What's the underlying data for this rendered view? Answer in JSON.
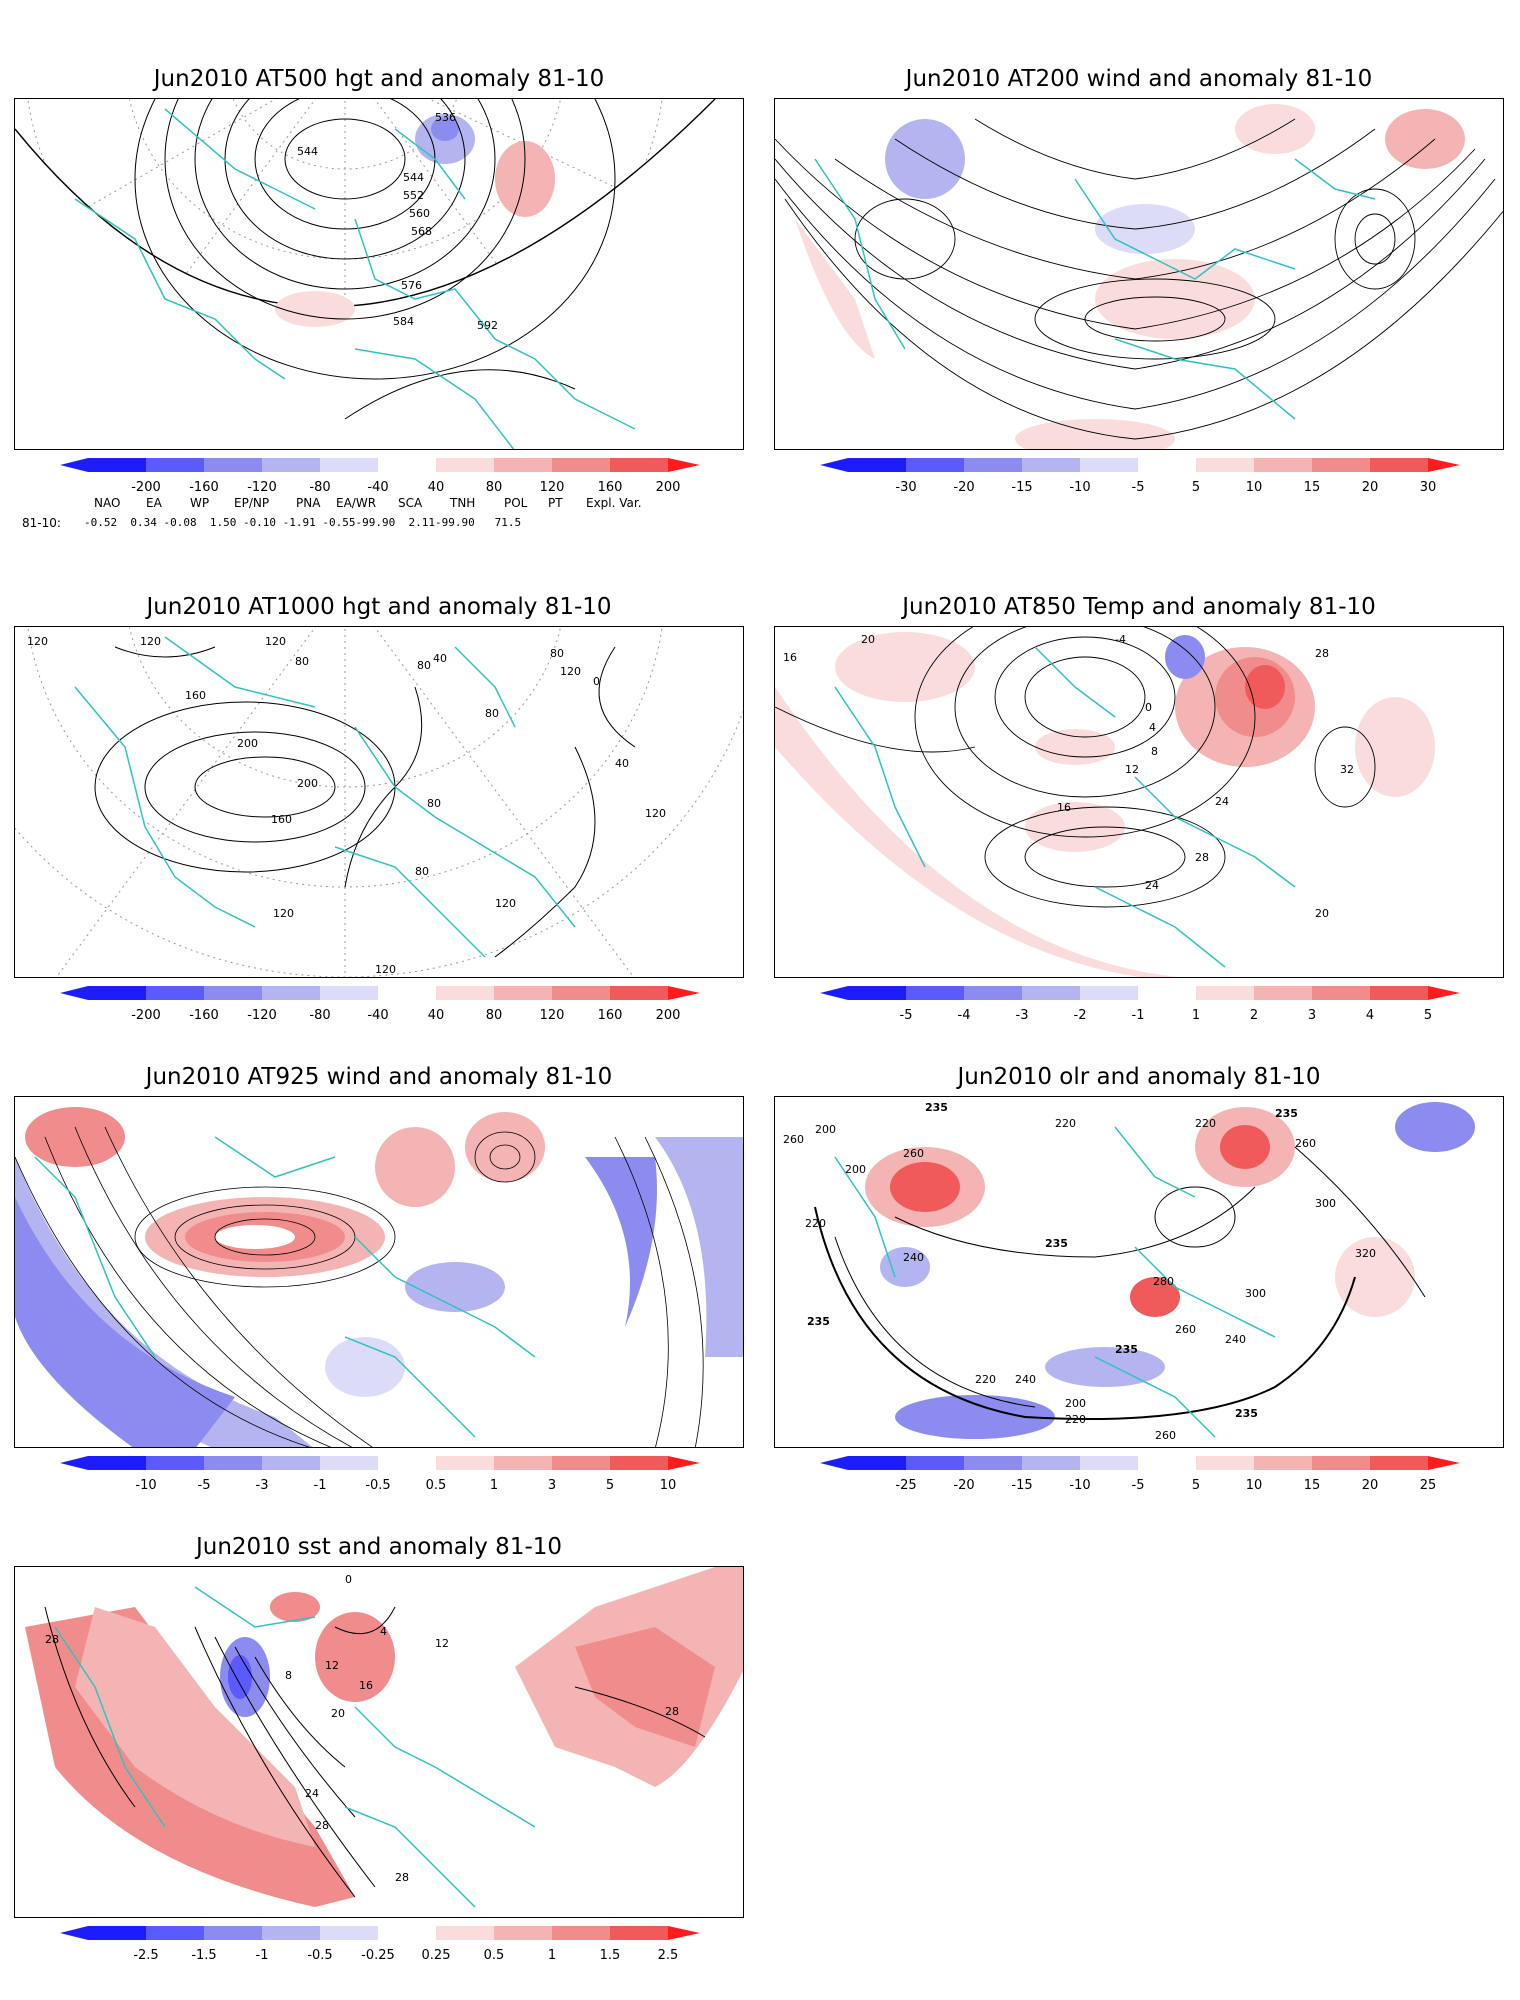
{
  "panels": [
    {
      "id": "p1",
      "title": "Jun2010 AT500 hgt and anomaly 81-10",
      "contour_labels": [
        "536",
        "544",
        "544",
        "552",
        "560",
        "568",
        "576",
        "584",
        "592"
      ],
      "colorbar": [
        "-200",
        "-160",
        "-120",
        "-80",
        "-40",
        "40",
        "80",
        "120",
        "160",
        "200"
      ]
    },
    {
      "id": "p2",
      "title": "Jun2010 AT200 wind and anomaly 81-10",
      "contour_labels": [],
      "colorbar": [
        "-30",
        "-20",
        "-15",
        "-10",
        "-5",
        "5",
        "10",
        "15",
        "20",
        "30"
      ]
    },
    {
      "id": "p3",
      "title": "Jun2010 AT1000 hgt and anomaly 81-10",
      "contour_labels": [
        "120",
        "120",
        "120",
        "80",
        "160",
        "200",
        "200",
        "160",
        "120",
        "80",
        "80",
        "80",
        "40",
        "40",
        "80",
        "120",
        "120",
        "120",
        "120",
        "0",
        "80"
      ],
      "colorbar": [
        "-200",
        "-160",
        "-120",
        "-80",
        "-40",
        "40",
        "80",
        "120",
        "160",
        "200"
      ]
    },
    {
      "id": "p4",
      "title": "Jun2010 AT850 Temp and anomaly 81-10",
      "contour_labels": [
        "20",
        "16",
        "-4",
        "0",
        "4",
        "8",
        "12",
        "16",
        "24",
        "28",
        "24",
        "20",
        "32",
        "28"
      ],
      "colorbar": [
        "-5",
        "-4",
        "-3",
        "-2",
        "-1",
        "1",
        "2",
        "3",
        "4",
        "5"
      ]
    },
    {
      "id": "p5",
      "title": "Jun2010 AT925 wind and anomaly 81-10",
      "contour_labels": [],
      "colorbar": [
        "-10",
        "-5",
        "-3",
        "-1",
        "-0.5",
        "0.5",
        "1",
        "3",
        "5",
        "10"
      ]
    },
    {
      "id": "p6",
      "title": "Jun2010 olr and anomaly 81-10",
      "contour_labels": [
        "260",
        "200",
        "235",
        "220",
        "200",
        "260",
        "220",
        "240",
        "235",
        "235",
        "220",
        "260",
        "280",
        "300",
        "320",
        "300",
        "260",
        "240",
        "220",
        "235",
        "200",
        "220",
        "260",
        "235",
        "240",
        "235"
      ],
      "colorbar": [
        "-25",
        "-20",
        "-15",
        "-10",
        "-5",
        "5",
        "10",
        "15",
        "20",
        "25"
      ]
    },
    {
      "id": "p7",
      "title": "Jun2010 sst and anomaly 81-10",
      "contour_labels": [
        "28",
        "0",
        "4",
        "8",
        "12",
        "16",
        "20",
        "24",
        "28",
        "28",
        "12",
        "28"
      ],
      "colorbar": [
        "-2.5",
        "-1.5",
        "-1",
        "-0.5",
        "-0.25",
        "0.25",
        "0.5",
        "1",
        "1.5",
        "2.5"
      ]
    }
  ],
  "teleconnection": {
    "headers": [
      "NAO",
      "EA",
      "WP",
      "EP/NP",
      "PNA",
      "EA/WR",
      "SCA",
      "TNH",
      "POL",
      "PT",
      "Expl. Var."
    ],
    "row_label": "81-10:",
    "values": "-0.52  0.34 -0.08  1.50 -0.10 -1.91 -0.55-99.90  2.11-99.90   71.5"
  },
  "colors": {
    "land": "#2ec4c0",
    "blue": [
      "#1c1cff",
      "#5a5aff",
      "#8c8cf0",
      "#b4b4f0",
      "#dcdcf8"
    ],
    "red": [
      "#fadcdc",
      "#f5b4b4",
      "#f08c8c",
      "#f05a5a",
      "#ff1c1c"
    ]
  }
}
